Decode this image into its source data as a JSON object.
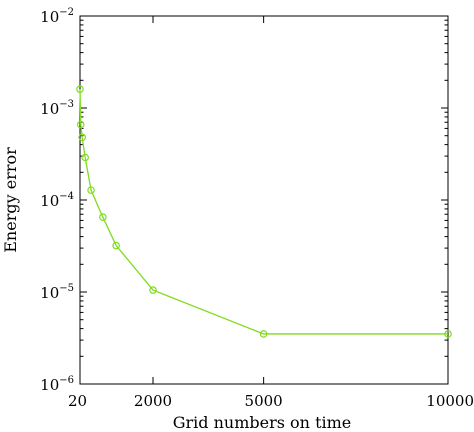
{
  "chart_data": {
    "type": "line",
    "title": "",
    "xlabel": "Grid numbers on time",
    "ylabel": "Energy error",
    "xlim": [
      20,
      10000
    ],
    "ylim": [
      1e-06,
      0.01
    ],
    "yscale": "log",
    "grid": false,
    "x_ticks": [
      "20",
      "2000",
      "5000",
      "10000"
    ],
    "y_ticks": [
      {
        "base": "10",
        "exp": "−2"
      },
      {
        "base": "10",
        "exp": "−3"
      },
      {
        "base": "10",
        "exp": "−4"
      },
      {
        "base": "10",
        "exp": "−5"
      },
      {
        "base": "10",
        "exp": "−6"
      }
    ],
    "series": [
      {
        "color": "#7fdc1e",
        "marker": "circle",
        "x": [
          20,
          40,
          80,
          160,
          320,
          640,
          1000,
          2000,
          5000,
          10000
        ],
        "y": [
          0.0016,
          0.00066,
          0.00048,
          0.00029,
          0.000128,
          6.5e-05,
          3.2e-05,
          1.05e-05,
          3.5e-06,
          3.5e-06
        ]
      }
    ]
  }
}
